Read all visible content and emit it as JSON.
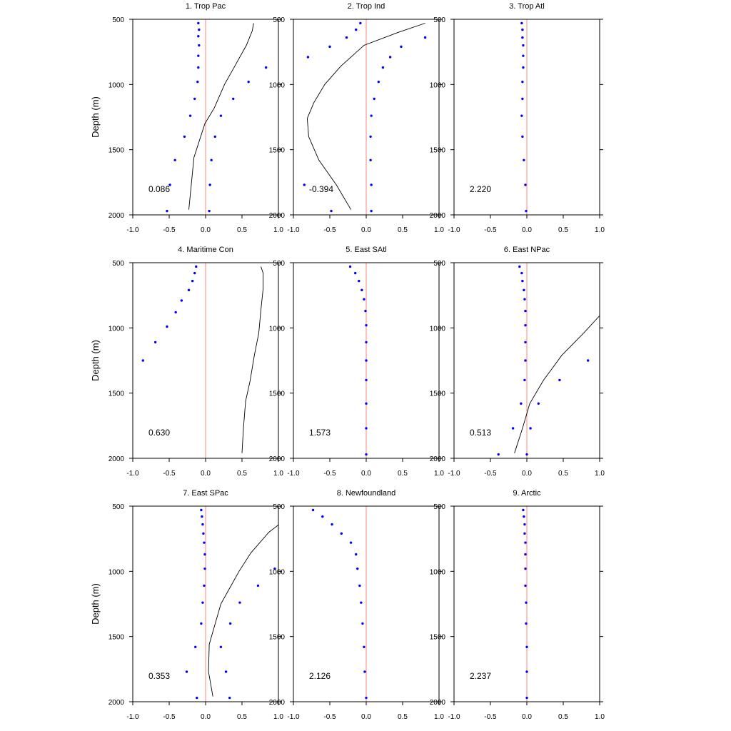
{
  "figure": {
    "ylabel": "Depth (m)",
    "xlim": [
      -1.0,
      1.0
    ],
    "ylim": [
      2000,
      500
    ],
    "xticks": [
      -1.0,
      -0.5,
      0.0,
      0.5,
      1.0
    ],
    "xtick_labels": [
      "-1.0",
      "-0.5",
      "0.0",
      "0.5",
      "1.0"
    ],
    "yticks": [
      500,
      1000,
      1500,
      2000
    ],
    "ytick_labels": [
      "500",
      "1000",
      "1500",
      "2000"
    ],
    "colors": {
      "dots": "#0000ff",
      "zero_line": "#ff8080",
      "curve": "#000000",
      "axes": "#000000"
    }
  },
  "chart_data": [
    {
      "type": "scatter",
      "title": "1. Trop Pac",
      "value_label": "0.086",
      "points": [
        [
          -0.1,
          530
        ],
        [
          -0.09,
          580
        ],
        [
          -0.1,
          630
        ],
        [
          -0.09,
          700
        ],
        [
          -0.1,
          780
        ],
        [
          -0.1,
          870
        ],
        [
          -0.11,
          980
        ],
        [
          -0.15,
          1110
        ],
        [
          -0.21,
          1240
        ],
        [
          -0.29,
          1400
        ],
        [
          -0.42,
          1580
        ],
        [
          -0.49,
          1770
        ],
        [
          -0.53,
          1970
        ],
        [
          0.05,
          1970
        ],
        [
          0.06,
          1770
        ],
        [
          0.08,
          1580
        ],
        [
          0.13,
          1400
        ],
        [
          0.21,
          1240
        ],
        [
          0.38,
          1110
        ],
        [
          0.59,
          980
        ],
        [
          0.83,
          870
        ]
      ],
      "curve": [
        [
          0.66,
          530
        ],
        [
          0.64,
          590
        ],
        [
          0.56,
          700
        ],
        [
          0.4,
          860
        ],
        [
          0.26,
          1000
        ],
        [
          0.12,
          1180
        ],
        [
          -0.01,
          1300
        ],
        [
          -0.16,
          1560
        ],
        [
          -0.23,
          1960
        ]
      ]
    },
    {
      "type": "scatter",
      "title": "2. Trop Ind",
      "value_label": "-0.394",
      "points": [
        [
          -0.08,
          530
        ],
        [
          -0.14,
          580
        ],
        [
          -0.27,
          640
        ],
        [
          -0.5,
          710
        ],
        [
          -0.8,
          790
        ],
        [
          0.48,
          710
        ],
        [
          0.33,
          790
        ],
        [
          0.23,
          870
        ],
        [
          0.17,
          980
        ],
        [
          0.11,
          1110
        ],
        [
          0.07,
          1240
        ],
        [
          0.06,
          1400
        ],
        [
          0.06,
          1580
        ],
        [
          0.07,
          1770
        ],
        [
          0.07,
          1970
        ],
        [
          -0.48,
          1970
        ],
        [
          -0.85,
          1770
        ],
        [
          0.81,
          640
        ]
      ],
      "curve": [
        [
          0.81,
          530
        ],
        [
          0.44,
          600
        ],
        [
          -0.03,
          700
        ],
        [
          -0.35,
          860
        ],
        [
          -0.57,
          1000
        ],
        [
          -0.72,
          1140
        ],
        [
          -0.81,
          1260
        ],
        [
          -0.79,
          1400
        ],
        [
          -0.65,
          1580
        ],
        [
          -0.41,
          1770
        ],
        [
          -0.21,
          1960
        ]
      ]
    },
    {
      "type": "scatter",
      "title": "3. Trop Atl",
      "value_label": "2.220",
      "points": [
        [
          -0.07,
          530
        ],
        [
          -0.06,
          580
        ],
        [
          -0.06,
          640
        ],
        [
          -0.05,
          700
        ],
        [
          -0.05,
          780
        ],
        [
          -0.05,
          870
        ],
        [
          -0.06,
          980
        ],
        [
          -0.06,
          1110
        ],
        [
          -0.07,
          1240
        ],
        [
          -0.06,
          1400
        ],
        [
          -0.04,
          1580
        ],
        [
          -0.02,
          1770
        ],
        [
          -0.01,
          1970
        ]
      ],
      "curve": []
    },
    {
      "type": "scatter",
      "title": "4. Maritime Con",
      "value_label": "0.630",
      "points": [
        [
          -0.13,
          530
        ],
        [
          -0.15,
          580
        ],
        [
          -0.18,
          640
        ],
        [
          -0.23,
          710
        ],
        [
          -0.33,
          790
        ],
        [
          -0.41,
          880
        ],
        [
          -0.53,
          990
        ],
        [
          -0.69,
          1110
        ],
        [
          -0.86,
          1250
        ],
        [
          -1.02,
          1400
        ]
      ],
      "curve": [
        [
          0.76,
          530
        ],
        [
          0.79,
          580
        ],
        [
          0.79,
          700
        ],
        [
          0.76,
          860
        ],
        [
          0.73,
          1040
        ],
        [
          0.67,
          1210
        ],
        [
          0.61,
          1410
        ],
        [
          0.55,
          1560
        ],
        [
          0.52,
          1770
        ],
        [
          0.5,
          1960
        ]
      ]
    },
    {
      "type": "scatter",
      "title": "5. East SAtl",
      "value_label": "1.573",
      "points": [
        [
          -0.22,
          530
        ],
        [
          -0.15,
          580
        ],
        [
          -0.1,
          640
        ],
        [
          -0.06,
          710
        ],
        [
          -0.03,
          780
        ],
        [
          -0.01,
          870
        ],
        [
          0.0,
          980
        ],
        [
          0.0,
          1110
        ],
        [
          0.0,
          1250
        ],
        [
          0.0,
          1400
        ],
        [
          0.0,
          1580
        ],
        [
          0.0,
          1770
        ],
        [
          0.0,
          1970
        ]
      ],
      "curve": []
    },
    {
      "type": "scatter",
      "title": "6. East NPac",
      "value_label": "0.513",
      "points": [
        [
          -0.1,
          530
        ],
        [
          -0.07,
          580
        ],
        [
          -0.06,
          640
        ],
        [
          -0.04,
          710
        ],
        [
          -0.03,
          780
        ],
        [
          -0.02,
          870
        ],
        [
          -0.02,
          980
        ],
        [
          -0.02,
          1110
        ],
        [
          -0.02,
          1250
        ],
        [
          -0.03,
          1400
        ],
        [
          -0.08,
          1580
        ],
        [
          -0.19,
          1770
        ],
        [
          -0.39,
          1970
        ],
        [
          0.0,
          1970
        ],
        [
          0.05,
          1770
        ],
        [
          0.16,
          1580
        ],
        [
          0.45,
          1400
        ],
        [
          0.84,
          1250
        ]
      ],
      "curve": [
        [
          1.06,
          870
        ],
        [
          0.78,
          1040
        ],
        [
          0.48,
          1210
        ],
        [
          0.23,
          1400
        ],
        [
          0.04,
          1580
        ],
        [
          -0.06,
          1770
        ],
        [
          -0.17,
          1960
        ]
      ]
    },
    {
      "type": "scatter",
      "title": "7. East SPac",
      "value_label": "0.353",
      "points": [
        [
          -0.06,
          530
        ],
        [
          -0.05,
          580
        ],
        [
          -0.04,
          640
        ],
        [
          -0.03,
          710
        ],
        [
          -0.02,
          780
        ],
        [
          -0.01,
          870
        ],
        [
          -0.01,
          980
        ],
        [
          -0.02,
          1110
        ],
        [
          -0.04,
          1240
        ],
        [
          -0.06,
          1400
        ],
        [
          -0.14,
          1580
        ],
        [
          -0.26,
          1770
        ],
        [
          -0.12,
          1970
        ],
        [
          0.33,
          1970
        ],
        [
          0.28,
          1770
        ],
        [
          0.21,
          1580
        ],
        [
          0.34,
          1400
        ],
        [
          0.47,
          1240
        ],
        [
          0.72,
          1110
        ],
        [
          0.95,
          980
        ]
      ],
      "curve": [
        [
          1.01,
          640
        ],
        [
          0.87,
          700
        ],
        [
          0.62,
          860
        ],
        [
          0.46,
          1000
        ],
        [
          0.32,
          1140
        ],
        [
          0.21,
          1250
        ],
        [
          0.05,
          1560
        ],
        [
          0.04,
          1770
        ],
        [
          0.1,
          1960
        ]
      ]
    },
    {
      "type": "scatter",
      "title": "8. Newfoundland",
      "value_label": "2.126",
      "points": [
        [
          -0.73,
          530
        ],
        [
          -0.6,
          580
        ],
        [
          -0.47,
          640
        ],
        [
          -0.34,
          710
        ],
        [
          -0.21,
          780
        ],
        [
          -0.14,
          870
        ],
        [
          -0.12,
          980
        ],
        [
          -0.09,
          1110
        ],
        [
          -0.07,
          1240
        ],
        [
          -0.05,
          1400
        ],
        [
          -0.03,
          1580
        ],
        [
          -0.02,
          1770
        ],
        [
          0.0,
          1970
        ]
      ],
      "curve": []
    },
    {
      "type": "scatter",
      "title": "9. Arctic",
      "value_label": "2.237",
      "points": [
        [
          -0.05,
          530
        ],
        [
          -0.04,
          580
        ],
        [
          -0.03,
          640
        ],
        [
          -0.03,
          710
        ],
        [
          -0.02,
          780
        ],
        [
          -0.02,
          870
        ],
        [
          -0.02,
          980
        ],
        [
          -0.02,
          1110
        ],
        [
          -0.01,
          1240
        ],
        [
          -0.01,
          1400
        ],
        [
          0.0,
          1580
        ],
        [
          0.0,
          1770
        ],
        [
          0.0,
          1970
        ]
      ],
      "curve": []
    }
  ]
}
